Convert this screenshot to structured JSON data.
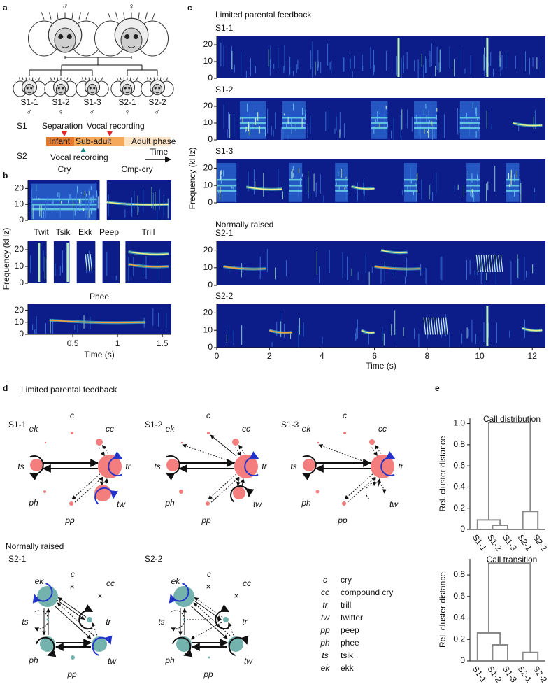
{
  "figure": {
    "a": {
      "label": "a",
      "parents": [
        "♂",
        "♀"
      ],
      "subjects": [
        {
          "name": "S1-1",
          "sex": "♂"
        },
        {
          "name": "S1-2",
          "sex": "♀"
        },
        {
          "name": "S1-3",
          "sex": "♂"
        },
        {
          "name": "S2-1",
          "sex": "♀"
        },
        {
          "name": "S2-2",
          "sex": "♂"
        }
      ],
      "groups": [
        {
          "name": "S1",
          "color": "#e0262b"
        },
        {
          "name": "S2",
          "color": "#1b8a87"
        }
      ],
      "s1_events": [
        "Separation",
        "Vocal recording"
      ],
      "s2_event": "Vocal recording",
      "phases": [
        "Infant",
        "Sub-adult",
        "Adult phase"
      ],
      "time": "Time"
    },
    "b": {
      "label": "b",
      "top_titles": [
        "Cry",
        "Cmp-cry"
      ],
      "mid_titles": [
        "Twit",
        "Tsik",
        "Ekk",
        "Peep",
        "Trill"
      ],
      "bottom_title": "Phee",
      "ylabel": "Frequency (kHz)",
      "xlabel": "Time (s)",
      "ylim": [
        0,
        25
      ],
      "yticks": [
        0,
        10,
        20
      ],
      "xlim": [
        0,
        1.6
      ],
      "xticks": [
        0.5,
        1,
        1.5
      ]
    },
    "c": {
      "label": "c",
      "groups": [
        "Limited parental feedback",
        "Normally raised"
      ],
      "subjects": [
        "S1-1",
        "S1-2",
        "S1-3",
        "S2-1",
        "S2-2"
      ],
      "ylabel": "Frequency (kHz)",
      "xlabel": "Time (s)",
      "ylim": [
        0,
        25
      ],
      "yticks": [
        0,
        10,
        20
      ],
      "xlim": [
        0,
        12.5
      ],
      "xticks": [
        0,
        2,
        4,
        6,
        8,
        10,
        12
      ]
    },
    "d": {
      "label": "d",
      "groups": [
        "Limited parental feedback",
        "Normally raised"
      ],
      "subjects": [
        "S1-1",
        "S1-2",
        "S1-3",
        "S2-1",
        "S2-2"
      ],
      "absent_mark": "×",
      "calls": [
        {
          "abbr": "c",
          "name": "cry"
        },
        {
          "abbr": "cc",
          "name": "compound cry"
        },
        {
          "abbr": "tr",
          "name": "trill"
        },
        {
          "abbr": "tw",
          "name": "twitter"
        },
        {
          "abbr": "pp",
          "name": "peep"
        },
        {
          "abbr": "ph",
          "name": "phee"
        },
        {
          "abbr": "ts",
          "name": "tsik"
        },
        {
          "abbr": "ek",
          "name": "ekk"
        }
      ]
    },
    "e": {
      "label": "e"
    }
  },
  "chart_data": [
    {
      "type": "dendrogram",
      "title": "Call distribution",
      "ylabel": "Rel. cluster distance",
      "leaves": [
        {
          "name": "S1-1",
          "color": "#e0262b"
        },
        {
          "name": "S1-2",
          "color": "#e0262b"
        },
        {
          "name": "S1-3",
          "color": "#e0262b"
        },
        {
          "name": "S2-1",
          "color": "#1b8a87"
        },
        {
          "name": "S2-2",
          "color": "#1b8a87"
        }
      ],
      "merges": [
        {
          "members": [
            1,
            2
          ],
          "height": 0.04
        },
        {
          "members": [
            0,
            5
          ],
          "height": 0.09
        },
        {
          "members": [
            3,
            4
          ],
          "height": 0.17
        },
        {
          "members": [
            6,
            7
          ],
          "height": 1.01
        }
      ],
      "ylim": [
        0,
        1.05
      ],
      "yticks": [
        0,
        0.2,
        0.4,
        0.6,
        0.8,
        {
          "value": 1,
          "label": "1.0"
        }
      ],
      "color": "#8a8a8a"
    },
    {
      "type": "dendrogram",
      "title": "Call transition",
      "ylabel": "Rel. cluster distance",
      "leaves": [
        {
          "name": "S1-1",
          "color": "#e0262b"
        },
        {
          "name": "S1-2",
          "color": "#e0262b"
        },
        {
          "name": "S1-3",
          "color": "#e0262b"
        },
        {
          "name": "S2-1",
          "color": "#1b8a87"
        },
        {
          "name": "S2-2",
          "color": "#1b8a87"
        }
      ],
      "merges": [
        {
          "members": [
            1,
            2
          ],
          "height": 0.15
        },
        {
          "members": [
            0,
            5
          ],
          "height": 0.26
        },
        {
          "members": [
            3,
            4
          ],
          "height": 0.08
        },
        {
          "members": [
            6,
            7
          ],
          "height": 0.91
        }
      ],
      "ylim": [
        0,
        0.95
      ],
      "yticks": [
        0,
        0.2,
        0.4,
        0.6,
        0.8
      ],
      "color": "#8a8a8a"
    }
  ]
}
